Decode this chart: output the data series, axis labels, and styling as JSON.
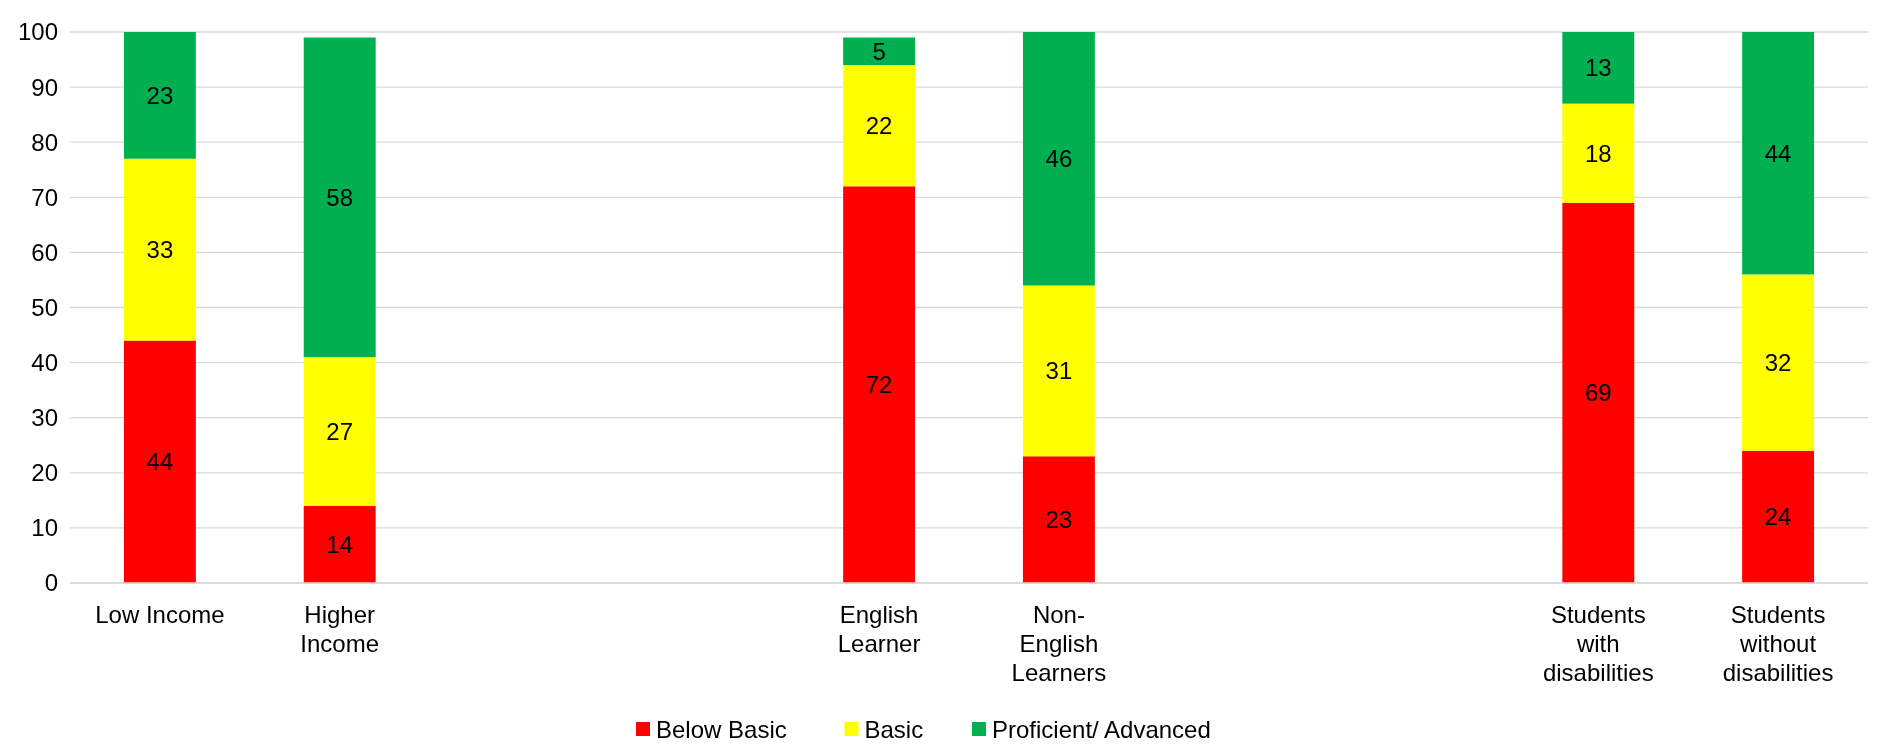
{
  "chart_data": {
    "type": "bar",
    "stacked": true,
    "categories": [
      "Low Income",
      "Higher Income",
      null,
      null,
      "English Learner",
      "Non-English Learners",
      null,
      null,
      "Students with disabilities",
      "Students without disabilities"
    ],
    "series": [
      {
        "name": "Below Basic",
        "color": "#ff0000",
        "values": [
          44,
          14,
          null,
          null,
          72,
          23,
          null,
          null,
          69,
          24
        ]
      },
      {
        "name": "Basic",
        "color": "#ffff00",
        "values": [
          33,
          27,
          null,
          null,
          22,
          31,
          null,
          null,
          18,
          32
        ]
      },
      {
        "name": "Proficient/ Advanced",
        "color": "#00b050",
        "values": [
          23,
          58,
          null,
          null,
          5,
          46,
          null,
          null,
          13,
          44
        ]
      }
    ],
    "ylim": [
      0,
      100
    ],
    "yticks": [
      0,
      10,
      20,
      30,
      40,
      50,
      60,
      70,
      80,
      90,
      100
    ],
    "grid": "y",
    "data_labels": true,
    "legend": "bottom"
  }
}
